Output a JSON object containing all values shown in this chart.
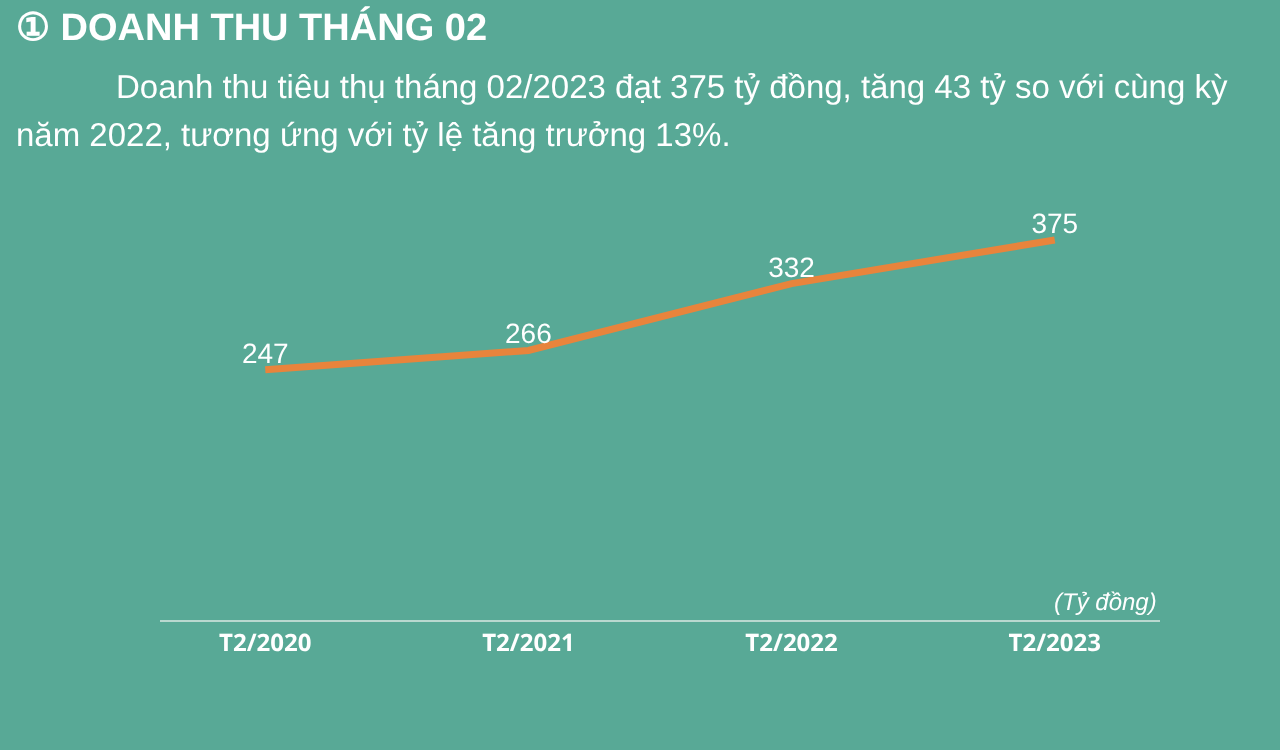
{
  "chart_data": {
    "type": "line",
    "title": "① DOANH THU THÁNG 02",
    "subtitle": "Doanh thu tiêu thụ tháng 02/2023 đạt 375 tỷ đồng, tăng 43 tỷ so với cùng kỳ năm 2022, tương ứng với tỷ lệ tăng trưởng 13%.",
    "categories": [
      "T2/2020",
      "T2/2021",
      "T2/2022",
      "T2/2023"
    ],
    "series": [
      {
        "color": "#e8843c",
        "values": [
          247,
          266,
          332,
          375
        ]
      }
    ],
    "data_labels": true,
    "marker": "none",
    "annotations": [
      "(Tỷ đồng)"
    ]
  }
}
